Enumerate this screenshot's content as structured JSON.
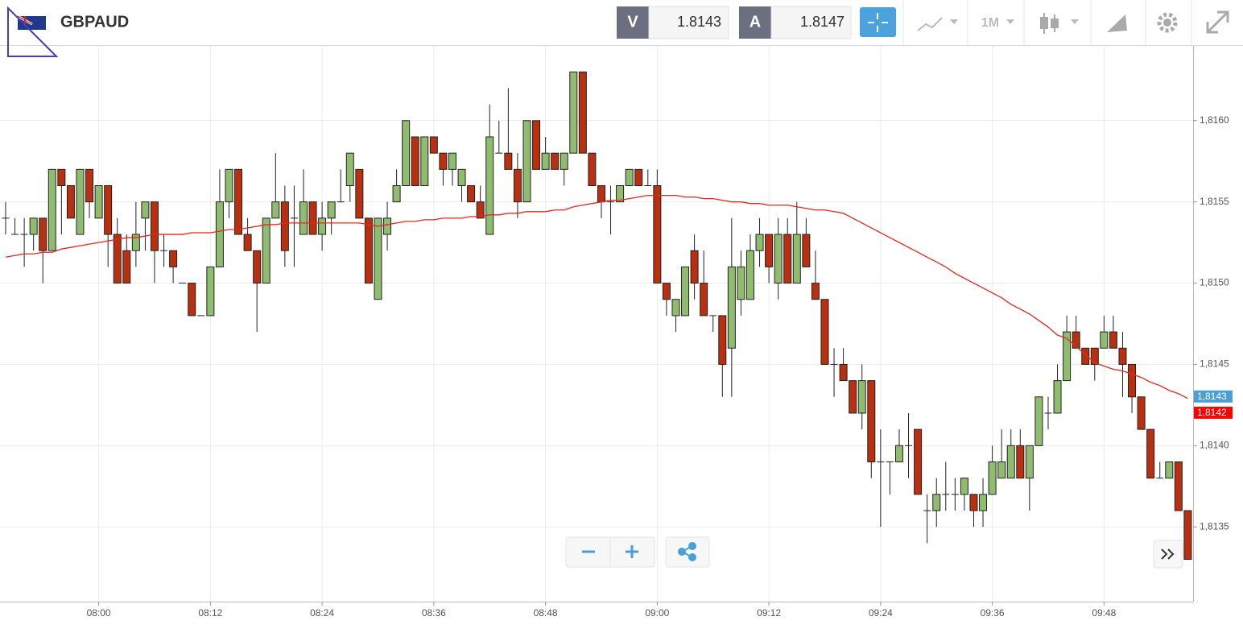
{
  "header": {
    "symbol": "GBPAUD",
    "bid_label": "V",
    "bid": 1.8143,
    "ask_label": "A",
    "ask": 1.8147,
    "period": "1M"
  },
  "chart_data": {
    "type": "candlestick",
    "up_color": "#8fbc6e",
    "down_color": "#b8300f",
    "categories": [
      null,
      null,
      null,
      null,
      null,
      null,
      null,
      null,
      null,
      null,
      "08:00",
      null,
      null,
      null,
      null,
      null,
      null,
      null,
      null,
      null,
      null,
      null,
      "08:12",
      null,
      null,
      null,
      null,
      null,
      null,
      null,
      null,
      null,
      null,
      null,
      "08:24",
      null,
      null,
      null,
      null,
      null,
      null,
      null,
      null,
      null,
      null,
      null,
      "08:36",
      null,
      null,
      null,
      null,
      null,
      null,
      null,
      null,
      null,
      null,
      null,
      "08:48",
      null,
      null,
      null,
      null,
      null,
      null,
      null,
      null,
      null,
      null,
      null,
      "09:00",
      null,
      null,
      null,
      null,
      null,
      null,
      null,
      null,
      null,
      null,
      null,
      "09:12",
      null,
      null,
      null,
      null,
      null,
      null,
      null,
      null,
      null,
      null,
      null,
      "09:24",
      null,
      null,
      null,
      null,
      null,
      null,
      null,
      null,
      null,
      null,
      null,
      "09:36",
      null,
      null,
      null,
      null,
      null,
      null,
      null,
      null,
      null,
      null,
      null,
      "09:48",
      null,
      null,
      null,
      null,
      null,
      null,
      null,
      null,
      null
    ],
    "open": [
      1.8154,
      1.8153,
      1.8153,
      1.8153,
      1.8154,
      1.8152,
      1.8157,
      1.8156,
      1.8153,
      1.8157,
      1.8154,
      1.8156,
      1.8153,
      1.8152,
      1.8152,
      1.8154,
      1.8155,
      1.8152,
      1.8152,
      1.815,
      1.815,
      1.8148,
      1.8148,
      1.8151,
      1.8155,
      1.8157,
      1.8153,
      1.8152,
      1.815,
      1.8154,
      1.8155,
      1.8154,
      1.8153,
      1.8155,
      1.8153,
      1.8154,
      1.8155,
      1.8156,
      1.8157,
      1.8154,
      1.8149,
      1.8153,
      1.8155,
      1.8156,
      1.8159,
      1.8156,
      1.8159,
      1.8158,
      1.8157,
      1.8156,
      1.8156,
      1.8155,
      1.8153,
      1.8158,
      1.8158,
      1.8157,
      1.8155,
      1.816,
      1.8157,
      1.8158,
      1.8157,
      1.8158,
      1.8163,
      1.8158,
      1.8156,
      1.8155,
      1.8155,
      1.8156,
      1.8157,
      1.8156,
      1.8156,
      1.815,
      1.8148,
      1.8148,
      1.8152,
      1.815,
      1.8148,
      1.8148,
      1.8146,
      1.8149,
      1.8149,
      1.8152,
      1.8153,
      1.815,
      1.8153,
      1.815,
      1.8153,
      1.815,
      1.8149,
      1.8145,
      1.8145,
      1.8144,
      1.8142,
      1.8144,
      1.8139,
      1.8139,
      1.8139,
      1.814,
      1.8141,
      1.8136,
      1.8136,
      1.8137,
      1.8137,
      1.8137,
      1.8137,
      1.8136,
      1.8137,
      1.8138,
      1.8138,
      1.814,
      1.8138,
      1.814,
      1.8142,
      1.8142,
      1.8144,
      1.8147,
      1.8146,
      1.8146,
      1.8146,
      1.8147,
      1.8146,
      1.8145,
      1.8143,
      1.8141,
      1.8138,
      1.8138,
      1.8139,
      1.8136
    ],
    "high": [
      1.8155,
      1.8154,
      1.8154,
      1.8154,
      1.8154,
      1.8157,
      1.8157,
      1.8156,
      1.8157,
      1.8157,
      1.8156,
      1.8156,
      1.8154,
      1.8153,
      1.8155,
      1.8155,
      1.8155,
      1.8153,
      1.8152,
      1.815,
      1.815,
      1.8148,
      1.8151,
      1.8157,
      1.8157,
      1.8157,
      1.8154,
      1.8152,
      1.8154,
      1.8158,
      1.8156,
      1.8156,
      1.8157,
      1.8155,
      1.8155,
      1.8155,
      1.8157,
      1.8158,
      1.8157,
      1.8154,
      1.8154,
      1.8155,
      1.8157,
      1.816,
      1.8159,
      1.8159,
      1.8159,
      1.8158,
      1.8158,
      1.8157,
      1.8156,
      1.8156,
      1.8161,
      1.816,
      1.8162,
      1.8158,
      1.816,
      1.816,
      1.8159,
      1.8158,
      1.8158,
      1.8163,
      1.8163,
      1.8158,
      1.8156,
      1.8156,
      1.8156,
      1.8157,
      1.8157,
      1.8157,
      1.8157,
      1.815,
      1.8149,
      1.8151,
      1.8153,
      1.8152,
      1.8148,
      1.8148,
      1.8154,
      1.8152,
      1.8153,
      1.8154,
      1.8153,
      1.8154,
      1.8154,
      1.8155,
      1.8154,
      1.8152,
      1.8149,
      1.8146,
      1.8146,
      1.8144,
      1.8145,
      1.8144,
      1.8141,
      1.8139,
      1.8141,
      1.8142,
      1.8141,
      1.8137,
      1.8138,
      1.8139,
      1.8138,
      1.8138,
      1.8137,
      1.8138,
      1.814,
      1.8141,
      1.8141,
      1.8141,
      1.814,
      1.8143,
      1.8143,
      1.8145,
      1.8148,
      1.8148,
      1.8146,
      1.8146,
      1.8148,
      1.8148,
      1.8147,
      1.8145,
      1.8143,
      1.8141,
      1.8139,
      1.8139,
      1.8139,
      1.8136
    ],
    "low": [
      1.8153,
      1.8153,
      1.8151,
      1.8152,
      1.815,
      1.8152,
      1.8153,
      1.8154,
      1.8153,
      1.8154,
      1.8154,
      1.8151,
      1.815,
      1.815,
      1.8151,
      1.8152,
      1.815,
      1.8151,
      1.815,
      1.815,
      1.8148,
      1.8148,
      1.8148,
      1.8151,
      1.8154,
      1.8153,
      1.8152,
      1.8147,
      1.815,
      1.8154,
      1.8151,
      1.8151,
      1.8153,
      1.8153,
      1.8152,
      1.8153,
      1.8155,
      1.8155,
      1.8154,
      1.815,
      1.8149,
      1.8152,
      1.8155,
      1.8156,
      1.8156,
      1.8156,
      1.8158,
      1.8156,
      1.8156,
      1.8155,
      1.8155,
      1.8154,
      1.8153,
      1.8158,
      1.8157,
      1.8154,
      1.8155,
      1.8157,
      1.8157,
      1.8157,
      1.8156,
      1.8158,
      1.8158,
      1.8156,
      1.8154,
      1.8153,
      1.8155,
      1.8156,
      1.8156,
      1.8156,
      1.815,
      1.8148,
      1.8147,
      1.8148,
      1.8149,
      1.8148,
      1.8147,
      1.8143,
      1.8143,
      1.8148,
      1.8149,
      1.8151,
      1.815,
      1.8149,
      1.815,
      1.815,
      1.8151,
      1.8149,
      1.8145,
      1.8143,
      1.8144,
      1.8142,
      1.8141,
      1.8138,
      1.8135,
      1.8137,
      1.8139,
      1.8138,
      1.8137,
      1.8134,
      1.8135,
      1.8136,
      1.8136,
      1.8136,
      1.8135,
      1.8135,
      1.8137,
      1.8138,
      1.8138,
      1.8138,
      1.8136,
      1.814,
      1.8141,
      1.8142,
      1.8144,
      1.8146,
      1.8145,
      1.8144,
      1.8146,
      1.8146,
      1.8143,
      1.8142,
      1.8141,
      1.8138,
      1.8138,
      1.8138,
      1.8136,
      1.8133
    ],
    "close": [
      1.8154,
      1.8153,
      1.8153,
      1.8154,
      1.8152,
      1.8157,
      1.8156,
      1.8154,
      1.8157,
      1.8155,
      1.8156,
      1.8153,
      1.815,
      1.815,
      1.8153,
      1.8155,
      1.8152,
      1.8152,
      1.8151,
      1.815,
      1.8148,
      1.8148,
      1.8151,
      1.8155,
      1.8157,
      1.8153,
      1.8152,
      1.815,
      1.8154,
      1.8155,
      1.8152,
      1.8154,
      1.8155,
      1.8153,
      1.8154,
      1.8155,
      1.8155,
      1.8158,
      1.8154,
      1.815,
      1.8154,
      1.8154,
      1.8156,
      1.816,
      1.8156,
      1.8159,
      1.8158,
      1.8157,
      1.8158,
      1.8157,
      1.8155,
      1.8154,
      1.8159,
      1.8158,
      1.8157,
      1.8155,
      1.816,
      1.8157,
      1.8158,
      1.8157,
      1.8158,
      1.8163,
      1.8158,
      1.8156,
      1.8155,
      1.8155,
      1.8156,
      1.8157,
      1.8156,
      1.8156,
      1.815,
      1.8149,
      1.8149,
      1.8151,
      1.815,
      1.8148,
      1.8148,
      1.8145,
      1.8151,
      1.8151,
      1.8152,
      1.8153,
      1.8151,
      1.8153,
      1.815,
      1.8153,
      1.8151,
      1.8149,
      1.8145,
      1.8145,
      1.8144,
      1.8142,
      1.8144,
      1.8139,
      1.8139,
      1.8139,
      1.814,
      1.814,
      1.8137,
      1.8136,
      1.8137,
      1.8137,
      1.8137,
      1.8138,
      1.8136,
      1.8137,
      1.8139,
      1.8139,
      1.814,
      1.8138,
      1.814,
      1.8143,
      1.8142,
      1.8144,
      1.8147,
      1.8146,
      1.8145,
      1.8145,
      1.8147,
      1.8146,
      1.8145,
      1.8143,
      1.8141,
      1.8138,
      1.8138,
      1.8139,
      1.8136,
      1.8133
    ],
    "moving_average": {
      "color": "#e8261f",
      "values": [
        1.81516,
        1.81517,
        1.81518,
        1.81518,
        1.81519,
        1.81519,
        1.81521,
        1.81522,
        1.81523,
        1.81524,
        1.81525,
        1.81526,
        1.81527,
        1.81528,
        1.81528,
        1.81529,
        1.8153,
        1.8153,
        1.8153,
        1.8153,
        1.81531,
        1.81531,
        1.81531,
        1.81532,
        1.81533,
        1.81533,
        1.81534,
        1.81535,
        1.81536,
        1.81536,
        1.81537,
        1.81537,
        1.81537,
        1.81537,
        1.81537,
        1.81537,
        1.81537,
        1.81537,
        1.81537,
        1.81536,
        1.81535,
        1.81536,
        1.81537,
        1.81538,
        1.81538,
        1.81539,
        1.81539,
        1.8154,
        1.8154,
        1.8154,
        1.81541,
        1.81541,
        1.81542,
        1.81542,
        1.81543,
        1.81543,
        1.81544,
        1.81544,
        1.81544,
        1.81545,
        1.81545,
        1.81547,
        1.81548,
        1.81549,
        1.8155,
        1.81551,
        1.81551,
        1.81552,
        1.81553,
        1.81554,
        1.81554,
        1.81554,
        1.81554,
        1.81553,
        1.81553,
        1.81552,
        1.81552,
        1.81551,
        1.8155,
        1.8155,
        1.81549,
        1.81549,
        1.81548,
        1.81548,
        1.81548,
        1.81547,
        1.81546,
        1.81545,
        1.81545,
        1.81544,
        1.81543,
        1.8154,
        1.81537,
        1.81534,
        1.81531,
        1.81528,
        1.81525,
        1.81522,
        1.81519,
        1.81516,
        1.81513,
        1.8151,
        1.81506,
        1.81503,
        1.815,
        1.81497,
        1.81494,
        1.81491,
        1.81487,
        1.81484,
        1.81481,
        1.81477,
        1.81473,
        1.81468,
        1.81466,
        1.81461,
        1.81456,
        1.81451,
        1.81449,
        1.81447,
        1.81446,
        1.81444,
        1.81442,
        1.81439,
        1.81437,
        1.81434,
        1.81432,
        1.81429
      ]
    },
    "price_markers": [
      {
        "value": 1.8143,
        "label": "1,8143",
        "color": "#4a9fd8"
      },
      {
        "value": 1.8142,
        "label": "1,8142",
        "color": "#ff0000"
      }
    ],
    "ylim": [
      1.81304,
      1.81646
    ],
    "yticks": [
      {
        "value": 1.8135,
        "label": "1,8135"
      },
      {
        "value": 1.814,
        "label": "1,8140"
      },
      {
        "value": 1.8145,
        "label": "1,8145"
      },
      {
        "value": 1.815,
        "label": "1,8150"
      },
      {
        "value": 1.8155,
        "label": "1,8155"
      },
      {
        "value": 1.816,
        "label": "1,8160"
      }
    ],
    "grid": true
  }
}
